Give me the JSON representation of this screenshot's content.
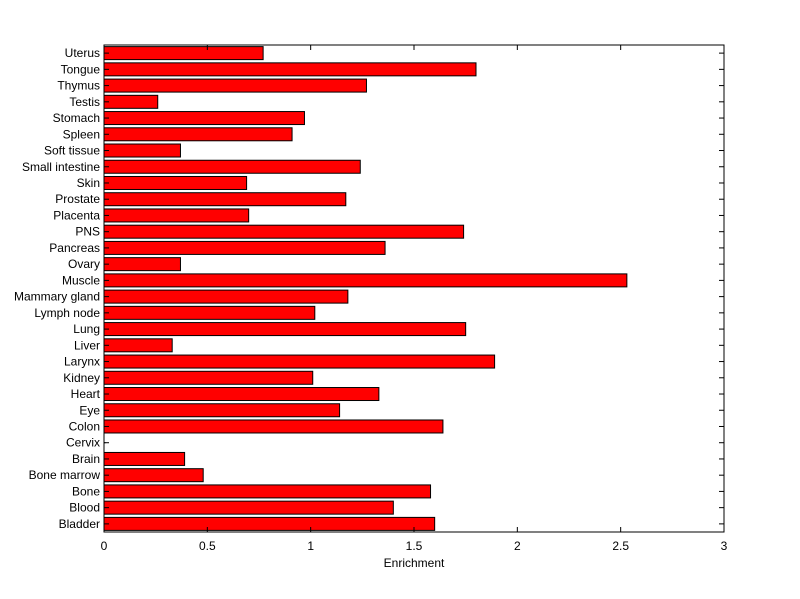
{
  "chart_data": {
    "type": "bar",
    "orientation": "horizontal",
    "title": "",
    "xlabel": "Enrichment",
    "ylabel": "",
    "xlim": [
      0,
      3
    ],
    "xticks": [
      0,
      0.5,
      1,
      1.5,
      2,
      2.5,
      3
    ],
    "xtick_labels": [
      "0",
      "0.5",
      "1",
      "1.5",
      "2",
      "2.5",
      "3"
    ],
    "grid": false,
    "legend": "none",
    "bar_color": "#ff0000",
    "edge_color": "#000000",
    "categories": [
      "Bladder",
      "Blood",
      "Bone",
      "Bone marrow",
      "Brain",
      "Cervix",
      "Colon",
      "Eye",
      "Heart",
      "Kidney",
      "Larynx",
      "Liver",
      "Lung",
      "Lymph node",
      "Mammary gland",
      "Muscle",
      "Ovary",
      "Pancreas",
      "PNS",
      "Placenta",
      "Prostate",
      "Skin",
      "Small intestine",
      "Soft tissue",
      "Spleen",
      "Stomach",
      "Testis",
      "Thymus",
      "Tongue",
      "Uterus"
    ],
    "values": [
      1.6,
      1.4,
      1.58,
      0.48,
      0.39,
      0.0,
      1.64,
      1.14,
      1.33,
      1.01,
      1.89,
      0.33,
      1.75,
      1.02,
      1.18,
      2.53,
      0.37,
      1.36,
      1.74,
      0.7,
      1.17,
      0.69,
      1.24,
      0.37,
      0.91,
      0.97,
      0.26,
      1.27,
      1.8,
      0.77
    ]
  }
}
